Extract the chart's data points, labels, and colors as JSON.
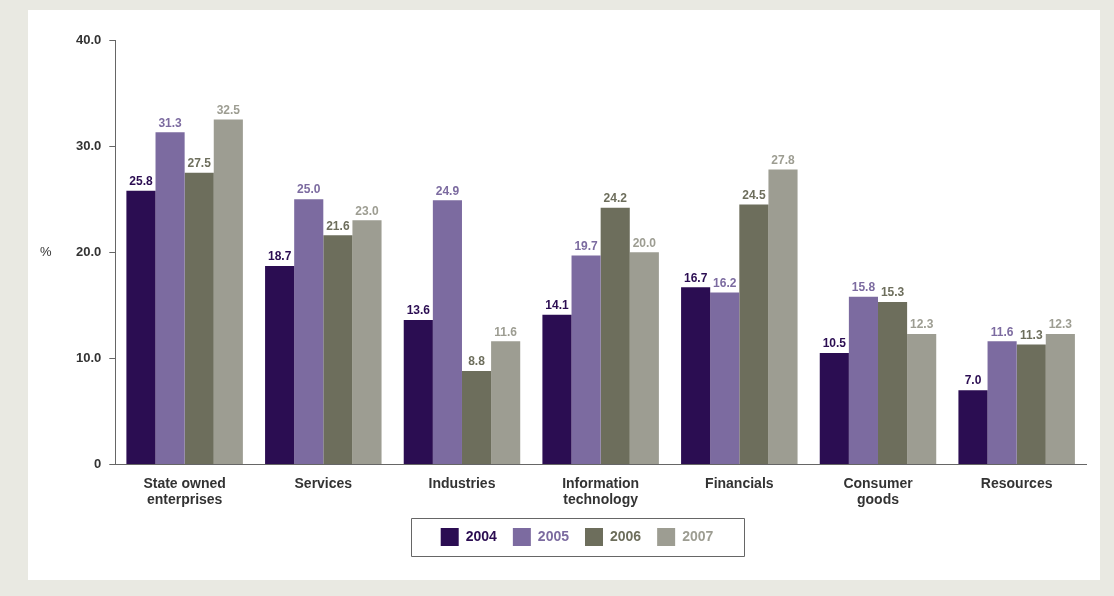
{
  "chart_data": {
    "type": "bar",
    "ylabel": "%",
    "categories": [
      "State owned enterprises",
      "Services",
      "Industries",
      "Information technology",
      "Financials",
      "Consumer goods",
      "Resources"
    ],
    "series": [
      {
        "name": "2004",
        "color": "#2b0d52",
        "values": [
          25.8,
          18.7,
          13.6,
          14.1,
          16.7,
          10.5,
          7.0
        ],
        "value_labels": [
          "25.8",
          "18.7",
          "13.6",
          "14.1",
          "16.7",
          "10.5",
          "7.0"
        ]
      },
      {
        "name": "2005",
        "color": "#7c6ba0",
        "values": [
          31.3,
          25.0,
          24.9,
          19.7,
          16.2,
          15.8,
          11.6
        ],
        "value_labels": [
          "31.3",
          "25.0",
          "24.9",
          "19.7",
          "16.2",
          "15.8",
          "11.6"
        ]
      },
      {
        "name": "2006",
        "color": "#6d6e5c",
        "values": [
          27.5,
          21.6,
          8.8,
          24.2,
          24.5,
          15.3,
          11.3
        ],
        "value_labels": [
          "27.5",
          "21.6",
          "8.8",
          "24.2",
          "24.5",
          "15.3",
          "11.3"
        ]
      },
      {
        "name": "2007",
        "color": "#9d9d92",
        "values": [
          32.5,
          23.0,
          11.6,
          20.0,
          27.8,
          12.3,
          12.3
        ],
        "value_labels": [
          "32.5",
          "23.0",
          "11.6",
          "20.0",
          "27.8",
          "12.3",
          "12.3"
        ]
      }
    ],
    "ylim": [
      0,
      40
    ],
    "yticks": [
      0,
      {
        "value": 10,
        "label": "10.0"
      },
      {
        "value": 20,
        "label": "20.0"
      },
      {
        "value": 30,
        "label": "30.0"
      },
      {
        "value": 40,
        "label": "40.0"
      }
    ],
    "grid": false,
    "legend": "bottom"
  }
}
